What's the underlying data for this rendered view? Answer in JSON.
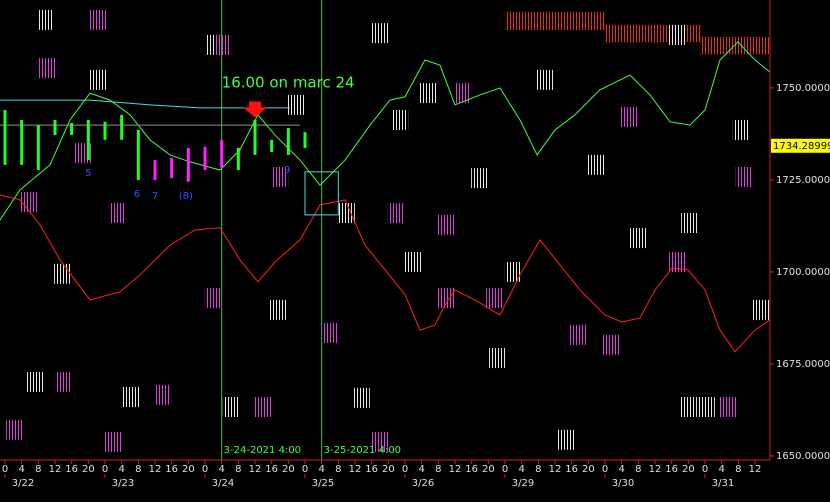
{
  "chart_data": {
    "type": "line",
    "xlim": [
      -1.2,
      183.6
    ],
    "ylim": [
      1648.9,
      1773.9
    ],
    "yticks": [
      {
        "value": 1750,
        "label": "1750.00000"
      },
      {
        "value": 1725,
        "label": "1725.00000"
      },
      {
        "value": 1700,
        "label": "1700.00000"
      },
      {
        "value": 1675,
        "label": "1675.00000"
      },
      {
        "value": 1650,
        "label": "1650.00000"
      }
    ],
    "xticks": [
      {
        "value": 0,
        "label": "0"
      },
      {
        "value": 4,
        "label": "4"
      },
      {
        "value": 8,
        "label": "8"
      },
      {
        "value": 12,
        "label": "12"
      },
      {
        "value": 16,
        "label": "16"
      },
      {
        "value": 20,
        "label": "20"
      },
      {
        "value": 24,
        "label": "0"
      },
      {
        "value": 28,
        "label": "4"
      },
      {
        "value": 32,
        "label": "8"
      },
      {
        "value": 36,
        "label": "12"
      },
      {
        "value": 40,
        "label": "16"
      },
      {
        "value": 44,
        "label": "20"
      },
      {
        "value": 48,
        "label": "0"
      },
      {
        "value": 52,
        "label": "4"
      },
      {
        "value": 56,
        "label": "8"
      },
      {
        "value": 60,
        "label": "12"
      },
      {
        "value": 64,
        "label": "16"
      },
      {
        "value": 68,
        "label": "20"
      },
      {
        "value": 72,
        "label": "0"
      },
      {
        "value": 76,
        "label": "4"
      },
      {
        "value": 80,
        "label": "8"
      },
      {
        "value": 84,
        "label": "12"
      },
      {
        "value": 88,
        "label": "16"
      },
      {
        "value": 92,
        "label": "20"
      },
      {
        "value": 96,
        "label": "0"
      },
      {
        "value": 100,
        "label": "4"
      },
      {
        "value": 104,
        "label": "8"
      },
      {
        "value": 108,
        "label": "12"
      },
      {
        "value": 112,
        "label": "16"
      },
      {
        "value": 116,
        "label": "20"
      },
      {
        "value": 120,
        "label": "0"
      },
      {
        "value": 124,
        "label": "4"
      },
      {
        "value": 128,
        "label": "8"
      },
      {
        "value": 132,
        "label": "12"
      },
      {
        "value": 136,
        "label": "16"
      },
      {
        "value": 140,
        "label": "20"
      },
      {
        "value": 144,
        "label": "0"
      },
      {
        "value": 148,
        "label": "4"
      },
      {
        "value": 152,
        "label": "8"
      },
      {
        "value": 156,
        "label": "12"
      },
      {
        "value": 160,
        "label": "16"
      },
      {
        "value": 164,
        "label": "20"
      },
      {
        "value": 168,
        "label": "0"
      },
      {
        "value": 172,
        "label": "4"
      },
      {
        "value": 176,
        "label": "8"
      },
      {
        "value": 180,
        "label": "12"
      }
    ],
    "day_labels": [
      {
        "value": 0,
        "label": "3/22"
      },
      {
        "value": 24,
        "label": "3/23"
      },
      {
        "value": 48,
        "label": "3/24"
      },
      {
        "value": 72,
        "label": "3/25"
      },
      {
        "value": 96,
        "label": "3/26"
      },
      {
        "value": 120,
        "label": "3/29"
      },
      {
        "value": 144,
        "label": "3/30"
      },
      {
        "value": 168,
        "label": "3/31"
      }
    ],
    "current_price": 1734.28999,
    "vlines": [
      {
        "value": 52,
        "label": "3-24-2021 4:00"
      },
      {
        "value": 76,
        "label": "3-25-2021 4:00"
      }
    ],
    "annotation": {
      "text": "16.00 on marc 24",
      "x": 52,
      "y": 1750,
      "arrow_x": 60,
      "arrow_y": 1742.5
    },
    "box": {
      "x": [
        72,
        80
      ],
      "y": [
        1715.5,
        1727.2
      ]
    },
    "series": [
      {
        "color": "#40ff40",
        "x": [
          -1.2,
          3.6,
          10.8,
          15.6,
          20.4,
          25.2,
          30,
          34.8,
          39.6,
          44.4,
          51.6,
          56.4,
          60.7,
          64.8,
          70.8,
          75.6,
          81.6,
          87.6,
          92.4,
          96,
          100.8,
          104.4,
          108,
          114,
          118.8,
          123.6,
          127.7,
          132,
          136.8,
          142.8,
          150,
          154.8,
          159.6,
          164.4,
          168,
          171.6,
          175.9,
          180,
          183.6
        ],
        "values": [
          1714.1,
          1722.3,
          1729.1,
          1741.3,
          1748.6,
          1746.7,
          1742.7,
          1735.9,
          1731.8,
          1729.9,
          1727.7,
          1733.2,
          1742.7,
          1737.2,
          1730.4,
          1723.6,
          1730.4,
          1739.9,
          1746.7,
          1747.6,
          1757.6,
          1756.2,
          1745.4,
          1748.1,
          1750,
          1741.3,
          1731.8,
          1738.6,
          1742.7,
          1749.5,
          1753.5,
          1748.1,
          1740.8,
          1739.9,
          1744,
          1757.6,
          1762.5,
          1757.6,
          1754.3
        ]
      },
      {
        "color": "#ff2020",
        "x": [
          -1.2,
          3.6,
          8.4,
          13.2,
          20.4,
          27.6,
          32.4,
          39.6,
          45.6,
          51.6,
          56.4,
          60.7,
          64.8,
          70.8,
          75.6,
          81.6,
          86.4,
          91.2,
          96,
          99.6,
          103.2,
          105.6,
          108,
          112.8,
          118.8,
          123.6,
          128.4,
          133.2,
          138,
          144,
          148.1,
          152.4,
          156,
          160.1,
          163.9,
          168,
          171.6,
          175.2,
          180,
          183.6
        ],
        "values": [
          1720.9,
          1719.6,
          1712.8,
          1703.3,
          1692.4,
          1694.6,
          1699.2,
          1707.3,
          1711.4,
          1712,
          1703.3,
          1697.3,
          1702.7,
          1708.7,
          1718.2,
          1719.6,
          1707.3,
          1700.6,
          1693.8,
          1684.2,
          1685.6,
          1691,
          1695.1,
          1692.4,
          1688.3,
          1699.2,
          1708.7,
          1701.9,
          1695.1,
          1688.3,
          1686.4,
          1687.5,
          1695.1,
          1701.1,
          1700.6,
          1695.1,
          1684.2,
          1678.3,
          1684.2,
          1687
        ]
      },
      {
        "color": "#40e0e0",
        "x": [
          -1.2,
          20.4,
          34.8,
          46.8,
          68.4
        ],
        "values": [
          1746.7,
          1746.7,
          1745.4,
          1744.6,
          1744.6
        ]
      },
      {
        "color": "#909090",
        "x": [
          -1.2,
          70.8
        ],
        "values": [
          1739.9,
          1739.9
        ]
      }
    ],
    "bars": {
      "x": [
        0,
        4,
        8,
        12,
        16,
        20,
        24,
        28,
        32,
        36,
        40,
        44,
        48,
        52,
        56,
        60,
        64,
        68,
        72
      ],
      "high": [
        1744,
        1741.3,
        1739.9,
        1741.3,
        1740.5,
        1741.3,
        1740.8,
        1742.7,
        1738.6,
        1730.4,
        1731,
        1733.7,
        1734,
        1735.9,
        1733.7,
        1741.3,
        1735.9,
        1739.1,
        1738
      ],
      "low": [
        1729.1,
        1729.1,
        1727.7,
        1737.2,
        1737.2,
        1730.4,
        1735.9,
        1735.9,
        1725,
        1725,
        1725.5,
        1724.5,
        1727.7,
        1728.3,
        1727.7,
        1731.8,
        1732.6,
        1731.8,
        1733.7
      ],
      "colors": [
        "#20ff20",
        "#20ff20",
        "#20ff20",
        "#20ff20",
        "#20ff20",
        "#20ff20",
        "#20ff20",
        "#20ff20",
        "#20ff20",
        "#ff20ff",
        "#ff20ff",
        "#ff20ff",
        "#ff20ff",
        "#ff20ff",
        "#20ff20",
        "#20ff20",
        "#20ff20",
        "#20ff20",
        "#20ff20"
      ]
    },
    "wave_labels": [
      {
        "text": "5",
        "x": 20,
        "y": 1726.9
      },
      {
        "text": "6",
        "x": 31.7,
        "y": 1721.2
      },
      {
        "text": "7",
        "x": 36,
        "y": 1720.7
      },
      {
        "text": "(8)",
        "x": 43.4,
        "y": 1720.7
      },
      {
        "text": "9",
        "x": 67.7,
        "y": 1727.7
      }
    ],
    "hatch": [
      {
        "color": "#e8e8e8",
        "x": [
          9.6,
          22.1,
          50.2,
          90,
          69.8,
          94.6,
          101.5,
          129.6,
          141.6,
          113.8,
          81.8,
          164.2,
          151.7,
          97.9,
          121.9,
          13.7,
          65.5,
          118.1,
          7,
          30,
          54.2,
          134.6,
          161.3,
          176.6,
          181.2,
          85.4,
          163.9,
          168.2
        ],
        "y": [
          1768.5,
          1752.2,
          1761.7,
          1764.9,
          1745.4,
          1741.3,
          1748.6,
          1752.2,
          1729.1,
          1725.5,
          1716,
          1713.3,
          1709.2,
          1702.7,
          1700,
          1699.5,
          1689.7,
          1676.6,
          1670.1,
          1666,
          1663.3,
          1654.4,
          1764.4,
          1738.6,
          1689.7,
          1665.8,
          1663.3,
          1663.3
        ]
      },
      {
        "color": "#e040e0",
        "x": [
          22.1,
          10.1,
          18.5,
          52.1,
          109.7,
          149.5,
          177.3,
          65.8,
          5.5,
          26.9,
          93.8,
          105.8,
          161.3,
          49.9,
          105.6,
          117.4,
          137.3,
          145.4,
          78,
          13.9,
          37.7,
          61.9,
          173.3,
          2.2,
          25.9,
          90
        ],
        "y": [
          1768.5,
          1755.4,
          1732.3,
          1761.7,
          1748.6,
          1742.1,
          1725.8,
          1725.8,
          1719,
          1716,
          1716,
          1712.8,
          1702.7,
          1692.9,
          1692.9,
          1692.9,
          1682.9,
          1680.2,
          1683.4,
          1670.1,
          1666.6,
          1663.3,
          1663.3,
          1657.1,
          1653.8,
          1653.8
        ]
      }
    ],
    "zones": {
      "color": "#e03020",
      "x0": [
        120,
        144,
        166.8
      ],
      "x1": [
        144,
        166.8,
        183.6
      ],
      "top": [
        1770.6,
        1767.1,
        1763.8
      ],
      "bottom": [
        1765.8,
        1762.5,
        1759.2
      ]
    }
  }
}
